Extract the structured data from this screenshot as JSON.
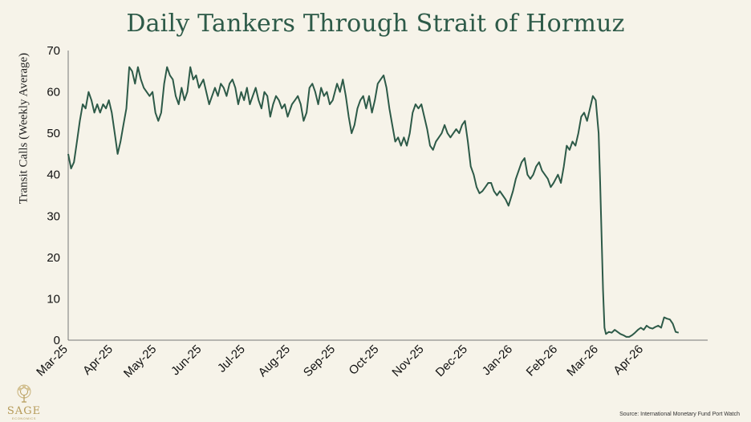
{
  "chart_data": {
    "type": "line",
    "title": "Daily Tankers Through Strait of Hormuz",
    "ylabel": "Transit Calls (Weekly Average)",
    "xlabel": "",
    "ylim": [
      0,
      70
    ],
    "yticks": [
      0,
      10,
      20,
      30,
      40,
      50,
      60,
      70
    ],
    "xlim": [
      "2025-03-01",
      "2026-05-15"
    ],
    "xticks": [
      "Mar-25",
      "Apr-25",
      "May-25",
      "Jun-25",
      "Jul-25",
      "Aug-25",
      "Sep-25",
      "Oct-25",
      "Nov-25",
      "Dec-25",
      "Jan-26",
      "Feb-26",
      "Mar-26",
      "Apr-26"
    ],
    "grid": false,
    "legend": "none",
    "line_color": "#2d5a48",
    "series": [
      {
        "points": [
          [
            "2025-03-01",
            45
          ],
          [
            "2025-03-03",
            41.5
          ],
          [
            "2025-03-05",
            43
          ],
          [
            "2025-03-07",
            48
          ],
          [
            "2025-03-09",
            53
          ],
          [
            "2025-03-11",
            57
          ],
          [
            "2025-03-13",
            56
          ],
          [
            "2025-03-15",
            60
          ],
          [
            "2025-03-17",
            58
          ],
          [
            "2025-03-19",
            55
          ],
          [
            "2025-03-21",
            57
          ],
          [
            "2025-03-23",
            55
          ],
          [
            "2025-03-25",
            57
          ],
          [
            "2025-03-27",
            56
          ],
          [
            "2025-03-29",
            58
          ],
          [
            "2025-03-31",
            55
          ],
          [
            "2025-04-02",
            50
          ],
          [
            "2025-04-04",
            45
          ],
          [
            "2025-04-06",
            48
          ],
          [
            "2025-04-08",
            52
          ],
          [
            "2025-04-10",
            56
          ],
          [
            "2025-04-12",
            66
          ],
          [
            "2025-04-14",
            65
          ],
          [
            "2025-04-16",
            62
          ],
          [
            "2025-04-18",
            66
          ],
          [
            "2025-04-20",
            63
          ],
          [
            "2025-04-22",
            61
          ],
          [
            "2025-04-24",
            60
          ],
          [
            "2025-04-26",
            59
          ],
          [
            "2025-04-28",
            60
          ],
          [
            "2025-04-30",
            55
          ],
          [
            "2025-05-02",
            53
          ],
          [
            "2025-05-04",
            55
          ],
          [
            "2025-05-06",
            62
          ],
          [
            "2025-05-08",
            66
          ],
          [
            "2025-05-10",
            64
          ],
          [
            "2025-05-12",
            63
          ],
          [
            "2025-05-14",
            59
          ],
          [
            "2025-05-16",
            57
          ],
          [
            "2025-05-18",
            61
          ],
          [
            "2025-05-20",
            58
          ],
          [
            "2025-05-22",
            60
          ],
          [
            "2025-05-24",
            66
          ],
          [
            "2025-05-26",
            63
          ],
          [
            "2025-05-28",
            64
          ],
          [
            "2025-05-30",
            61
          ],
          [
            "2025-06-02",
            63
          ],
          [
            "2025-06-04",
            60
          ],
          [
            "2025-06-06",
            57
          ],
          [
            "2025-06-08",
            59
          ],
          [
            "2025-06-10",
            61
          ],
          [
            "2025-06-12",
            59
          ],
          [
            "2025-06-14",
            62
          ],
          [
            "2025-06-16",
            61
          ],
          [
            "2025-06-18",
            59
          ],
          [
            "2025-06-20",
            62
          ],
          [
            "2025-06-22",
            63
          ],
          [
            "2025-06-24",
            61
          ],
          [
            "2025-06-26",
            57
          ],
          [
            "2025-06-28",
            60
          ],
          [
            "2025-06-30",
            58
          ],
          [
            "2025-07-02",
            61
          ],
          [
            "2025-07-04",
            57
          ],
          [
            "2025-07-06",
            59
          ],
          [
            "2025-07-08",
            61
          ],
          [
            "2025-07-10",
            58
          ],
          [
            "2025-07-12",
            56
          ],
          [
            "2025-07-14",
            60
          ],
          [
            "2025-07-16",
            59
          ],
          [
            "2025-07-18",
            54
          ],
          [
            "2025-07-20",
            57
          ],
          [
            "2025-07-22",
            59
          ],
          [
            "2025-07-24",
            58
          ],
          [
            "2025-07-26",
            56
          ],
          [
            "2025-07-28",
            57
          ],
          [
            "2025-07-30",
            54
          ],
          [
            "2025-08-02",
            57
          ],
          [
            "2025-08-04",
            58
          ],
          [
            "2025-08-06",
            59
          ],
          [
            "2025-08-08",
            57
          ],
          [
            "2025-08-10",
            53
          ],
          [
            "2025-08-12",
            55
          ],
          [
            "2025-08-14",
            61
          ],
          [
            "2025-08-16",
            62
          ],
          [
            "2025-08-18",
            60
          ],
          [
            "2025-08-20",
            57
          ],
          [
            "2025-08-22",
            61
          ],
          [
            "2025-08-24",
            59
          ],
          [
            "2025-08-26",
            60
          ],
          [
            "2025-08-28",
            57
          ],
          [
            "2025-08-30",
            58
          ],
          [
            "2025-09-02",
            62
          ],
          [
            "2025-09-04",
            60
          ],
          [
            "2025-09-06",
            63
          ],
          [
            "2025-09-08",
            59
          ],
          [
            "2025-09-10",
            54
          ],
          [
            "2025-09-12",
            50
          ],
          [
            "2025-09-14",
            52
          ],
          [
            "2025-09-16",
            56
          ],
          [
            "2025-09-18",
            58
          ],
          [
            "2025-09-20",
            59
          ],
          [
            "2025-09-22",
            56
          ],
          [
            "2025-09-24",
            59
          ],
          [
            "2025-09-26",
            55
          ],
          [
            "2025-09-28",
            58
          ],
          [
            "2025-09-30",
            62
          ],
          [
            "2025-10-02",
            63
          ],
          [
            "2025-10-04",
            64
          ],
          [
            "2025-10-06",
            61
          ],
          [
            "2025-10-08",
            56
          ],
          [
            "2025-10-10",
            52
          ],
          [
            "2025-10-12",
            48
          ],
          [
            "2025-10-14",
            49
          ],
          [
            "2025-10-16",
            47
          ],
          [
            "2025-10-18",
            49
          ],
          [
            "2025-10-20",
            47
          ],
          [
            "2025-10-22",
            50
          ],
          [
            "2025-10-24",
            55
          ],
          [
            "2025-10-26",
            57
          ],
          [
            "2025-10-28",
            56
          ],
          [
            "2025-10-30",
            57
          ],
          [
            "2025-11-01",
            54
          ],
          [
            "2025-11-03",
            51
          ],
          [
            "2025-11-05",
            47
          ],
          [
            "2025-11-07",
            46
          ],
          [
            "2025-11-09",
            48
          ],
          [
            "2025-11-11",
            49
          ],
          [
            "2025-11-13",
            50
          ],
          [
            "2025-11-15",
            52
          ],
          [
            "2025-11-17",
            50
          ],
          [
            "2025-11-19",
            49
          ],
          [
            "2025-11-21",
            50
          ],
          [
            "2025-11-23",
            51
          ],
          [
            "2025-11-25",
            50
          ],
          [
            "2025-11-27",
            52
          ],
          [
            "2025-11-29",
            53
          ],
          [
            "2025-12-01",
            48
          ],
          [
            "2025-12-03",
            42
          ],
          [
            "2025-12-05",
            40
          ],
          [
            "2025-12-07",
            37
          ],
          [
            "2025-12-09",
            35.5
          ],
          [
            "2025-12-11",
            36
          ],
          [
            "2025-12-13",
            37
          ],
          [
            "2025-12-15",
            38
          ],
          [
            "2025-12-17",
            38
          ],
          [
            "2025-12-19",
            36
          ],
          [
            "2025-12-21",
            35
          ],
          [
            "2025-12-23",
            36
          ],
          [
            "2025-12-25",
            35
          ],
          [
            "2025-12-27",
            34
          ],
          [
            "2025-12-29",
            32.5
          ],
          [
            "2026-01-01",
            36
          ],
          [
            "2026-01-03",
            39
          ],
          [
            "2026-01-05",
            41
          ],
          [
            "2026-01-07",
            43
          ],
          [
            "2026-01-09",
            44
          ],
          [
            "2026-01-11",
            40
          ],
          [
            "2026-01-13",
            39
          ],
          [
            "2026-01-15",
            40
          ],
          [
            "2026-01-17",
            42
          ],
          [
            "2026-01-19",
            43
          ],
          [
            "2026-01-21",
            41
          ],
          [
            "2026-01-23",
            40
          ],
          [
            "2026-01-25",
            39
          ],
          [
            "2026-01-27",
            37
          ],
          [
            "2026-01-29",
            38
          ],
          [
            "2026-02-01",
            40
          ],
          [
            "2026-02-03",
            38
          ],
          [
            "2026-02-05",
            42
          ],
          [
            "2026-02-07",
            47
          ],
          [
            "2026-02-09",
            46
          ],
          [
            "2026-02-11",
            48
          ],
          [
            "2026-02-13",
            47
          ],
          [
            "2026-02-15",
            50
          ],
          [
            "2026-02-17",
            54
          ],
          [
            "2026-02-19",
            55
          ],
          [
            "2026-02-21",
            53
          ],
          [
            "2026-02-23",
            56
          ],
          [
            "2026-02-25",
            59
          ],
          [
            "2026-02-27",
            58
          ],
          [
            "2026-03-01",
            50
          ],
          [
            "2026-03-02",
            38
          ],
          [
            "2026-03-03",
            25
          ],
          [
            "2026-03-04",
            12
          ],
          [
            "2026-03-05",
            3
          ],
          [
            "2026-03-06",
            1.5
          ],
          [
            "2026-03-08",
            2
          ],
          [
            "2026-03-10",
            1.8
          ],
          [
            "2026-03-12",
            2.5
          ],
          [
            "2026-03-14",
            2
          ],
          [
            "2026-03-16",
            1.5
          ],
          [
            "2026-03-18",
            1.2
          ],
          [
            "2026-03-20",
            0.8
          ],
          [
            "2026-03-22",
            0.8
          ],
          [
            "2026-03-24",
            1.2
          ],
          [
            "2026-03-26",
            1.8
          ],
          [
            "2026-03-28",
            2.5
          ],
          [
            "2026-03-30",
            3
          ],
          [
            "2026-04-01",
            2.5
          ],
          [
            "2026-04-03",
            3.5
          ],
          [
            "2026-04-05",
            3
          ],
          [
            "2026-04-07",
            2.8
          ],
          [
            "2026-04-09",
            3.2
          ],
          [
            "2026-04-11",
            3.5
          ],
          [
            "2026-04-13",
            3
          ],
          [
            "2026-04-15",
            5.5
          ],
          [
            "2026-04-17",
            5.2
          ],
          [
            "2026-04-19",
            5
          ],
          [
            "2026-04-21",
            4
          ],
          [
            "2026-04-23",
            2
          ],
          [
            "2026-04-25",
            1.8
          ]
        ]
      }
    ]
  },
  "source": "Source: International Monetary Fund Port Watch",
  "logo": {
    "name": "SAGE",
    "sub": "ECONOMICS",
    "color": "#b59a58"
  }
}
